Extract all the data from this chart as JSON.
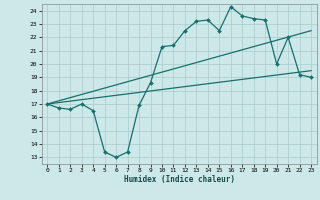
{
  "title": "",
  "xlabel": "Humidex (Indice chaleur)",
  "ylabel": "",
  "bg_color": "#cce8e8",
  "grid_color": "#aacccc",
  "line_color": "#1a6e6e",
  "xlim": [
    -0.5,
    23.5
  ],
  "ylim": [
    12.5,
    24.5
  ],
  "xticks": [
    0,
    1,
    2,
    3,
    4,
    5,
    6,
    7,
    8,
    9,
    10,
    11,
    12,
    13,
    14,
    15,
    16,
    17,
    18,
    19,
    20,
    21,
    22,
    23
  ],
  "yticks": [
    13,
    14,
    15,
    16,
    17,
    18,
    19,
    20,
    21,
    22,
    23,
    24
  ],
  "curve1_x": [
    0,
    1,
    2,
    3,
    4,
    5,
    6,
    7,
    8,
    9,
    10,
    11,
    12,
    13,
    14,
    15,
    16,
    17,
    18,
    19,
    20,
    21,
    22,
    23
  ],
  "curve1_y": [
    17.0,
    16.7,
    16.6,
    17.0,
    16.5,
    13.4,
    13.0,
    13.4,
    16.9,
    18.6,
    21.3,
    21.4,
    22.5,
    23.2,
    23.3,
    22.5,
    24.3,
    23.6,
    23.4,
    23.3,
    20.0,
    22.0,
    19.2,
    19.0
  ],
  "curve2_x": [
    0,
    23
  ],
  "curve2_y": [
    17.0,
    19.5
  ],
  "curve3_x": [
    0,
    23
  ],
  "curve3_y": [
    17.0,
    22.5
  ]
}
